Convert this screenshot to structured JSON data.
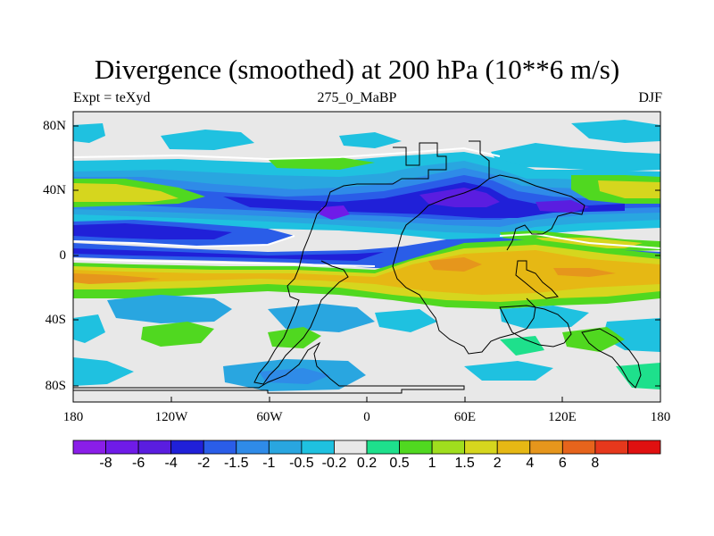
{
  "title": "Divergence (smoothed) at 200 hPa (10**6 m/s)",
  "subtitle_left": "Expt = teXyd",
  "subtitle_center": "275_0_MaBP",
  "subtitle_right": "DJF",
  "axes": {
    "y_ticks": [
      "80N",
      "40N",
      "0",
      "40S",
      "80S"
    ],
    "x_ticks": [
      "180",
      "120W",
      "60W",
      "0",
      "60E",
      "120E",
      "180"
    ]
  },
  "colorbar": {
    "colors": [
      "#8a1ee8",
      "#6f1be8",
      "#5a1de0",
      "#2020d8",
      "#2a5de8",
      "#2f8be8",
      "#29a6e0",
      "#1fc1e0",
      "#e8e8e8",
      "#1ee08c",
      "#50d820",
      "#a0de1e",
      "#d6d61e",
      "#e6b814",
      "#e6961c",
      "#e6641c",
      "#e6381c",
      "#e01010"
    ],
    "labels": [
      "-8",
      "-6",
      "-4",
      "-2",
      "-1.5",
      "-1",
      "-0.5",
      "-0.2",
      "0.2",
      "0.5",
      "1",
      "1.5",
      "2",
      "4",
      "6",
      "8"
    ]
  },
  "map": {
    "background_color": "#e8e8e8",
    "contour_line_color": "#ffffff",
    "coastline_color": "#000000"
  }
}
